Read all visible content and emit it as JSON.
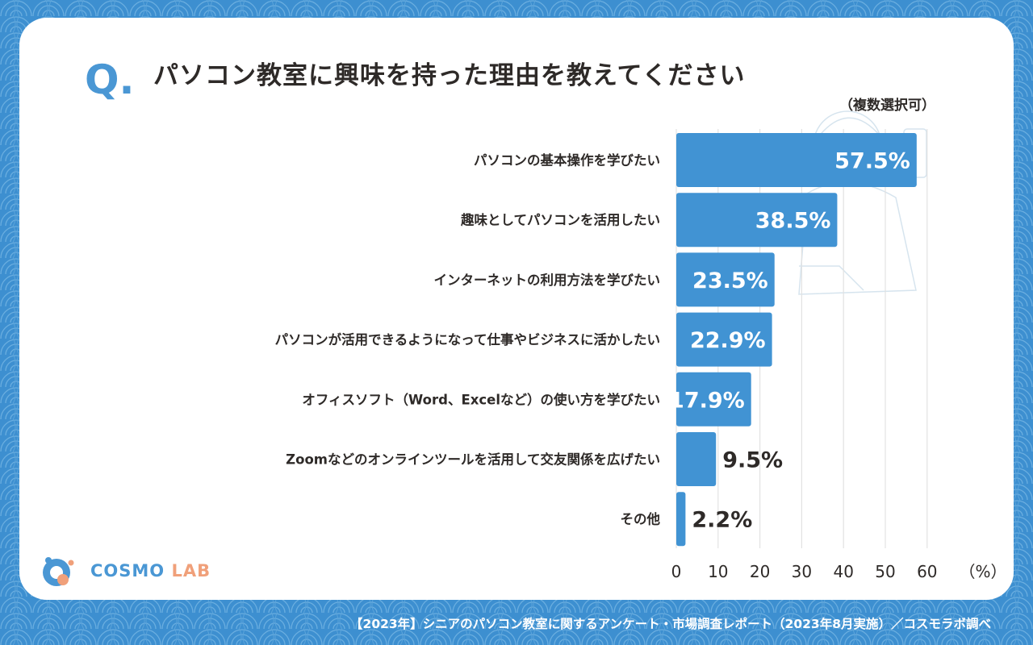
{
  "question": {
    "mark": "Q.",
    "title": "パソコン教室に興味を持った理由を教えてください",
    "note": "（複数選択可）"
  },
  "chart_data": {
    "type": "bar",
    "orientation": "horizontal",
    "categories": [
      "パソコンの基本操作を学びたい",
      "趣味としてパソコンを活用したい",
      "インターネットの利用方法を学びたい",
      "パソコンが活用できるようになって仕事やビジネスに活かしたい",
      "オフィスソフト（Word、Excelなど）の使い方を学びたい",
      "Zoomなどのオンラインツールを活用して交友関係を広げたい",
      "その他"
    ],
    "values": [
      57.5,
      38.5,
      23.5,
      22.9,
      17.9,
      9.5,
      2.2
    ],
    "value_labels": [
      "57.5%",
      "38.5%",
      "23.5%",
      "22.9%",
      "17.9%",
      "9.5%",
      "2.2%"
    ],
    "x_ticks": [
      "0",
      "10",
      "20",
      "30",
      "40",
      "50",
      "60"
    ],
    "x_unit": "（%）",
    "xlim": [
      0,
      60
    ],
    "grid": true,
    "bar_color": "#4193d3"
  },
  "logo": {
    "text_main": "COSMO ",
    "text_accent": "LAB"
  },
  "footer": "【2023年】シニアのパソコン教室に関するアンケート・市場調査レポート（2023年8月実施）／コスモラボ調べ",
  "colors": {
    "background": "#3d8fd0",
    "card": "#ffffff",
    "accent": "#4a97d4",
    "logo_accent": "#f0a07a",
    "text": "#2e2a28"
  }
}
